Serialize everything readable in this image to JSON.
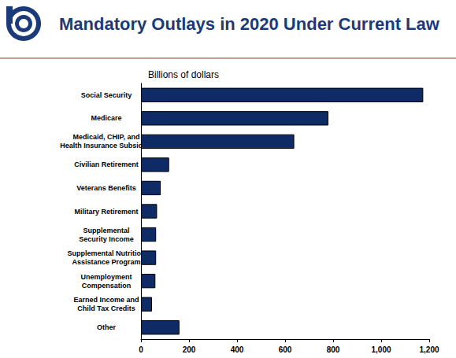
{
  "chart_data": {
    "type": "bar",
    "orientation": "horizontal",
    "title": "Mandatory Outlays in 2020 Under Current Law",
    "subtitle": "Billions of dollars",
    "categories": [
      "Social Security",
      "Medicare",
      "Medicaid, CHIP, and\nHealth Insurance Subsidies",
      "Civilian Retirement",
      "Veterans Benefits",
      "Military Retirement",
      "Supplemental\nSecurity Income",
      "Supplemental Nutrition\nAssistance Program",
      "Unemployment\nCompensation",
      "Earned Income and\nChild Tax Credits",
      "Other"
    ],
    "values": [
      1175,
      780,
      638,
      117,
      82,
      67,
      63,
      63,
      60,
      46,
      160
    ],
    "color": "#0f2b66",
    "xlim": [
      0,
      1200
    ],
    "xticks": [
      0,
      200,
      400,
      600,
      800,
      {
        "value": 1000,
        "label": "1,000"
      },
      {
        "value": 1200,
        "label": "1,200"
      }
    ],
    "grid": false
  }
}
